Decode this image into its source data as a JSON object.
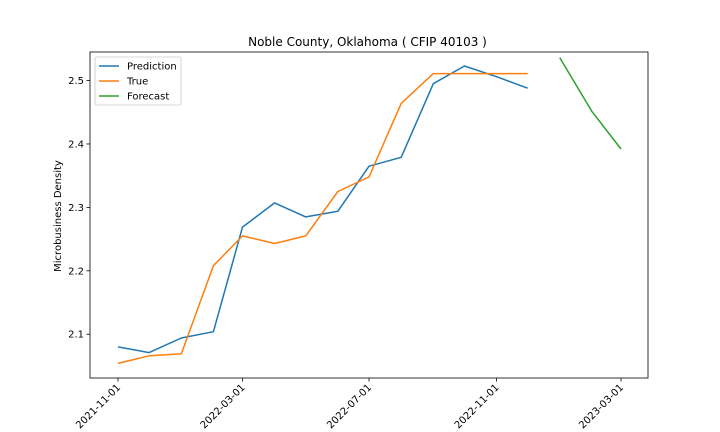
{
  "chart_data": {
    "type": "line",
    "title": "Noble County, Oklahoma ( CFIP 40103 )",
    "xlabel": "",
    "ylabel": "Microbusiness Density",
    "x_type": "date",
    "x_ticks": [
      "2021-11-01",
      "2022-03-01",
      "2022-07-01",
      "2022-11-01",
      "2023-03-01"
    ],
    "y_ticks": [
      2.1,
      2.2,
      2.3,
      2.4,
      2.5
    ],
    "xlim": [
      "2021-10-05",
      "2023-03-27"
    ],
    "ylim": [
      2.031,
      2.545
    ],
    "grid": false,
    "legend_position": "upper left",
    "series": [
      {
        "name": "Prediction",
        "color": "#1f77b4",
        "x": [
          "2021-11-01",
          "2021-12-01",
          "2022-01-01",
          "2022-02-01",
          "2022-03-01",
          "2022-04-01",
          "2022-05-01",
          "2022-06-01",
          "2022-07-01",
          "2022-08-01",
          "2022-09-01",
          "2022-10-01",
          "2022-11-01",
          "2022-12-01"
        ],
        "y": [
          2.08,
          2.071,
          2.094,
          2.104,
          2.269,
          2.307,
          2.285,
          2.294,
          2.365,
          2.379,
          2.495,
          2.523,
          2.506,
          2.488
        ]
      },
      {
        "name": "True",
        "color": "#ff7f0e",
        "x": [
          "2021-11-01",
          "2021-12-01",
          "2022-01-01",
          "2022-02-01",
          "2022-03-01",
          "2022-04-01",
          "2022-05-01",
          "2022-06-01",
          "2022-07-01",
          "2022-08-01",
          "2022-09-01",
          "2022-10-01",
          "2022-11-01",
          "2022-12-01"
        ],
        "y": [
          2.054,
          2.066,
          2.069,
          2.208,
          2.255,
          2.243,
          2.255,
          2.325,
          2.348,
          2.464,
          2.511,
          2.511,
          2.511,
          2.511
        ]
      },
      {
        "name": "Forecast",
        "color": "#2ca02c",
        "x": [
          "2023-01-01",
          "2023-02-01",
          "2023-03-01"
        ],
        "y": [
          2.536,
          2.451,
          2.392
        ]
      }
    ]
  }
}
